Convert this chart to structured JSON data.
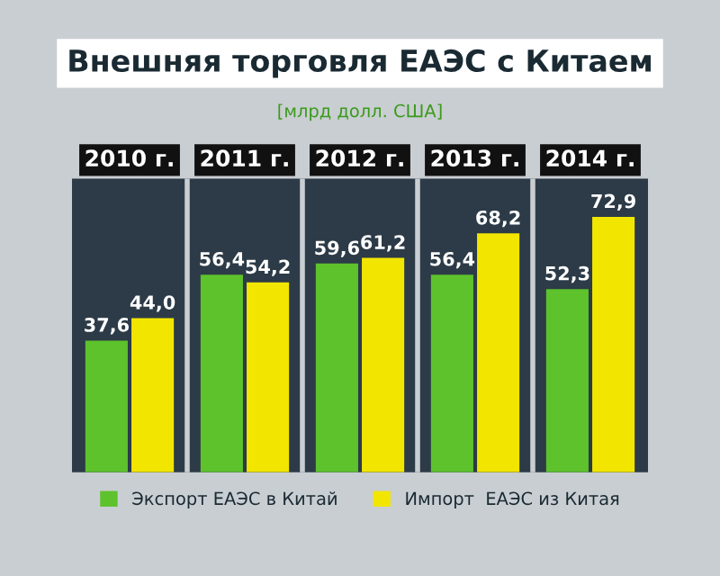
{
  "chart_data": {
    "type": "bar",
    "title": "Внешняя торговля ЕАЭС с Китаем",
    "subtitle": "[млрд долл. США]",
    "categories": [
      "2010 г.",
      "2011 г.",
      "2012 г.",
      "2013 г.",
      "2014 г."
    ],
    "series": [
      {
        "name": "Экспорт ЕАЭС в Китай",
        "color": "#5dc22c",
        "values": [
          37.6,
          56.4,
          59.6,
          56.4,
          52.3
        ],
        "value_labels": [
          "37,6",
          "56,4",
          "59,6",
          "56,4",
          "52,3"
        ]
      },
      {
        "name": "Импорт  ЕАЭС из Китая",
        "color": "#f2e600",
        "values": [
          44.0,
          54.2,
          61.2,
          68.2,
          72.9
        ],
        "value_labels": [
          "44,0",
          "54,2",
          "61,2",
          "68,2",
          "72,9"
        ]
      }
    ],
    "legend": "bottom",
    "grid": false
  }
}
